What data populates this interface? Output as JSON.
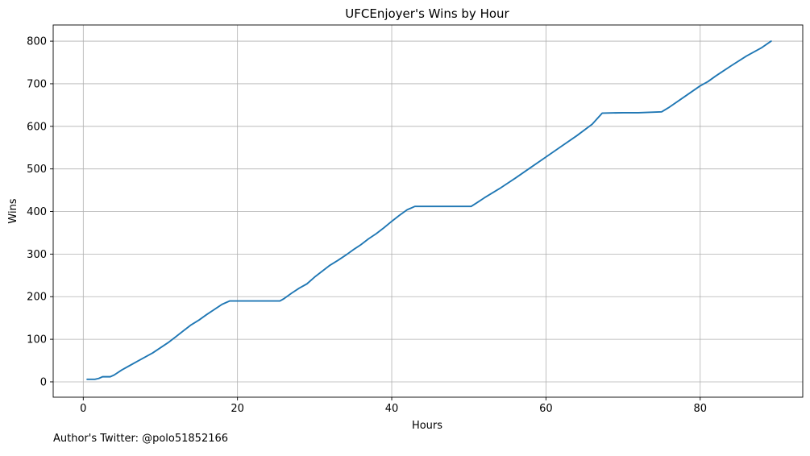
{
  "footer": {
    "text": "Author's Twitter: @polo51852166"
  },
  "chart_data": {
    "type": "line",
    "title": "UFCEnjoyer's Wins by Hour",
    "xlabel": "Hours",
    "ylabel": "Wins",
    "xlim": [
      -3.9,
      93.3
    ],
    "ylim": [
      -36,
      838
    ],
    "xticks": [
      0,
      20,
      40,
      60,
      80
    ],
    "yticks": [
      0,
      100,
      200,
      300,
      400,
      500,
      600,
      700,
      800
    ],
    "grid": true,
    "series_color": "#1f77b4",
    "series": [
      {
        "x": [
          0.5,
          1.0,
          1.5,
          2.0,
          2.5,
          3.0,
          3.5,
          4.0,
          5.0,
          6.0,
          7.0,
          8.0,
          9.0,
          10.0,
          11.0,
          12.0,
          13.0,
          14.0,
          15.0,
          16.0,
          17.0,
          18.0,
          19.0,
          19.6,
          20.5,
          22.0,
          24.0,
          25.5,
          26.0,
          27.0,
          28.0,
          29.0,
          30.0,
          31.0,
          32.0,
          33.0,
          34.0,
          35.0,
          36.0,
          37.0,
          38.0,
          39.0,
          40.0,
          41.0,
          42.0,
          43.0,
          44.0,
          44.3,
          46.0,
          48.0,
          50.3,
          51.0,
          52.0,
          54.0,
          56.0,
          58.0,
          60.0,
          62.0,
          64.0,
          66.0,
          67.3,
          70.0,
          72.0,
          75.0,
          76.0,
          78.0,
          80.0,
          81.0,
          82.0,
          84.0,
          86.0,
          88.0,
          89.2
        ],
        "y": [
          6,
          6,
          6,
          8,
          12,
          12,
          12,
          16,
          28,
          38,
          48,
          58,
          68,
          80,
          92,
          106,
          120,
          134,
          145,
          158,
          170,
          182,
          190,
          190,
          190,
          190,
          190,
          190,
          195,
          208,
          220,
          230,
          246,
          260,
          274,
          285,
          297,
          310,
          322,
          336,
          348,
          362,
          377,
          391,
          404,
          412,
          412,
          412,
          412,
          412,
          412,
          420,
          432,
          454,
          478,
          503,
          528,
          553,
          578,
          605,
          631,
          632,
          632,
          634,
          645,
          670,
          695,
          705,
          718,
          742,
          765,
          785,
          800
        ]
      }
    ]
  }
}
